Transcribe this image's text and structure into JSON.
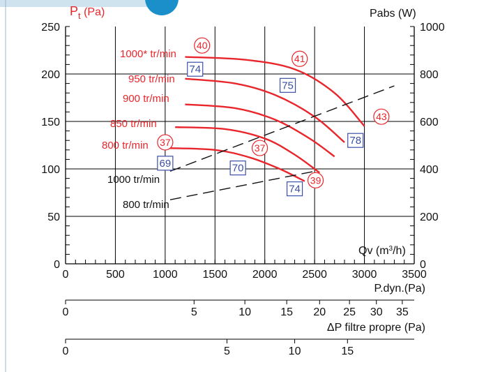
{
  "colors": {
    "curve": "#e8262b",
    "power": "#111111",
    "box": "#3a4fa8",
    "grid": "#000000"
  },
  "chart_data": {
    "type": "line",
    "xlabel": "Qv (m³/h)",
    "ylabel": "Pt (Pa)",
    "y2label": "Pabs (W)",
    "xlim": [
      0,
      3500
    ],
    "ylim": [
      0,
      250
    ],
    "y2lim": [
      0,
      1000
    ],
    "x_ticks": [
      0,
      500,
      1000,
      1500,
      2000,
      2500,
      3000,
      3500
    ],
    "y_ticks": [
      0,
      50,
      100,
      150,
      200,
      250
    ],
    "y2_ticks": [
      0,
      200,
      400,
      600,
      800,
      1000
    ],
    "grid": true,
    "pressure_series": [
      {
        "name": "1000* tr/min",
        "x": [
          1200,
          1800,
          2300,
          2700,
          3000
        ],
        "y": [
          218,
          215,
          205,
          180,
          145
        ]
      },
      {
        "name": "950 tr/min",
        "x": [
          1200,
          1700,
          2100,
          2500,
          2800
        ],
        "y": [
          195,
          190,
          178,
          155,
          128
        ]
      },
      {
        "name": "900 tr/min",
        "x": [
          1200,
          1700,
          2100,
          2450,
          2700
        ],
        "y": [
          168,
          164,
          152,
          132,
          113
        ]
      },
      {
        "name": "850 tr/min",
        "x": [
          1100,
          1600,
          2000,
          2300,
          2550
        ],
        "y": [
          144,
          142,
          132,
          115,
          96
        ]
      },
      {
        "name": "800 tr/min",
        "x": [
          1000,
          1500,
          1850,
          2150,
          2400
        ],
        "y": [
          122,
          120,
          112,
          100,
          87
        ]
      }
    ],
    "power_series": [
      {
        "name": "1000 tr/min",
        "x": [
          1050,
          3300
        ],
        "y2": [
          390,
          750
        ]
      },
      {
        "name": "800 tr/min",
        "x": [
          1050,
          2500
        ],
        "y2": [
          270,
          390
        ]
      }
    ],
    "circle_annotations": [
      {
        "text": "40",
        "x": 1370,
        "y": 230
      },
      {
        "text": "41",
        "x": 2350,
        "y": 216
      },
      {
        "text": "43",
        "x": 3170,
        "y": 155
      },
      {
        "text": "37",
        "x": 1000,
        "y": 128
      },
      {
        "text": "37",
        "x": 1950,
        "y": 122
      },
      {
        "text": "39",
        "x": 2510,
        "y": 88
      }
    ],
    "box_annotations": [
      {
        "text": "74",
        "x": 1300,
        "y": 205
      },
      {
        "text": "75",
        "x": 2230,
        "y": 188
      },
      {
        "text": "78",
        "x": 2910,
        "y": 130
      },
      {
        "text": "69",
        "x": 1000,
        "y": 106
      },
      {
        "text": "70",
        "x": 1730,
        "y": 101
      },
      {
        "text": "74",
        "x": 2300,
        "y": 79
      }
    ],
    "pressure_labels": [
      "1000* tr/min",
      "950 tr/min",
      "900 tr/min",
      "850 tr/min",
      "800 tr/min"
    ],
    "power_labels": [
      "1000 tr/min",
      "800 tr/min"
    ],
    "scale_pdyn": {
      "label": "P.dyn.(Pa)",
      "ticks": [
        {
          "label": "0",
          "x": 0
        },
        {
          "label": "5",
          "x": 1290
        },
        {
          "label": "10",
          "x": 1800
        },
        {
          "label": "15",
          "x": 2220
        },
        {
          "label": "20",
          "x": 2550
        },
        {
          "label": "25",
          "x": 2850
        },
        {
          "label": "30",
          "x": 3120
        },
        {
          "label": "35",
          "x": 3380
        }
      ]
    },
    "scale_filter": {
      "label": "ΔP filtre propre (Pa)",
      "ticks": [
        {
          "label": "0",
          "x": 0
        },
        {
          "label": "5",
          "x": 1620
        },
        {
          "label": "10",
          "x": 2300
        },
        {
          "label": "15",
          "x": 2830
        }
      ]
    }
  }
}
